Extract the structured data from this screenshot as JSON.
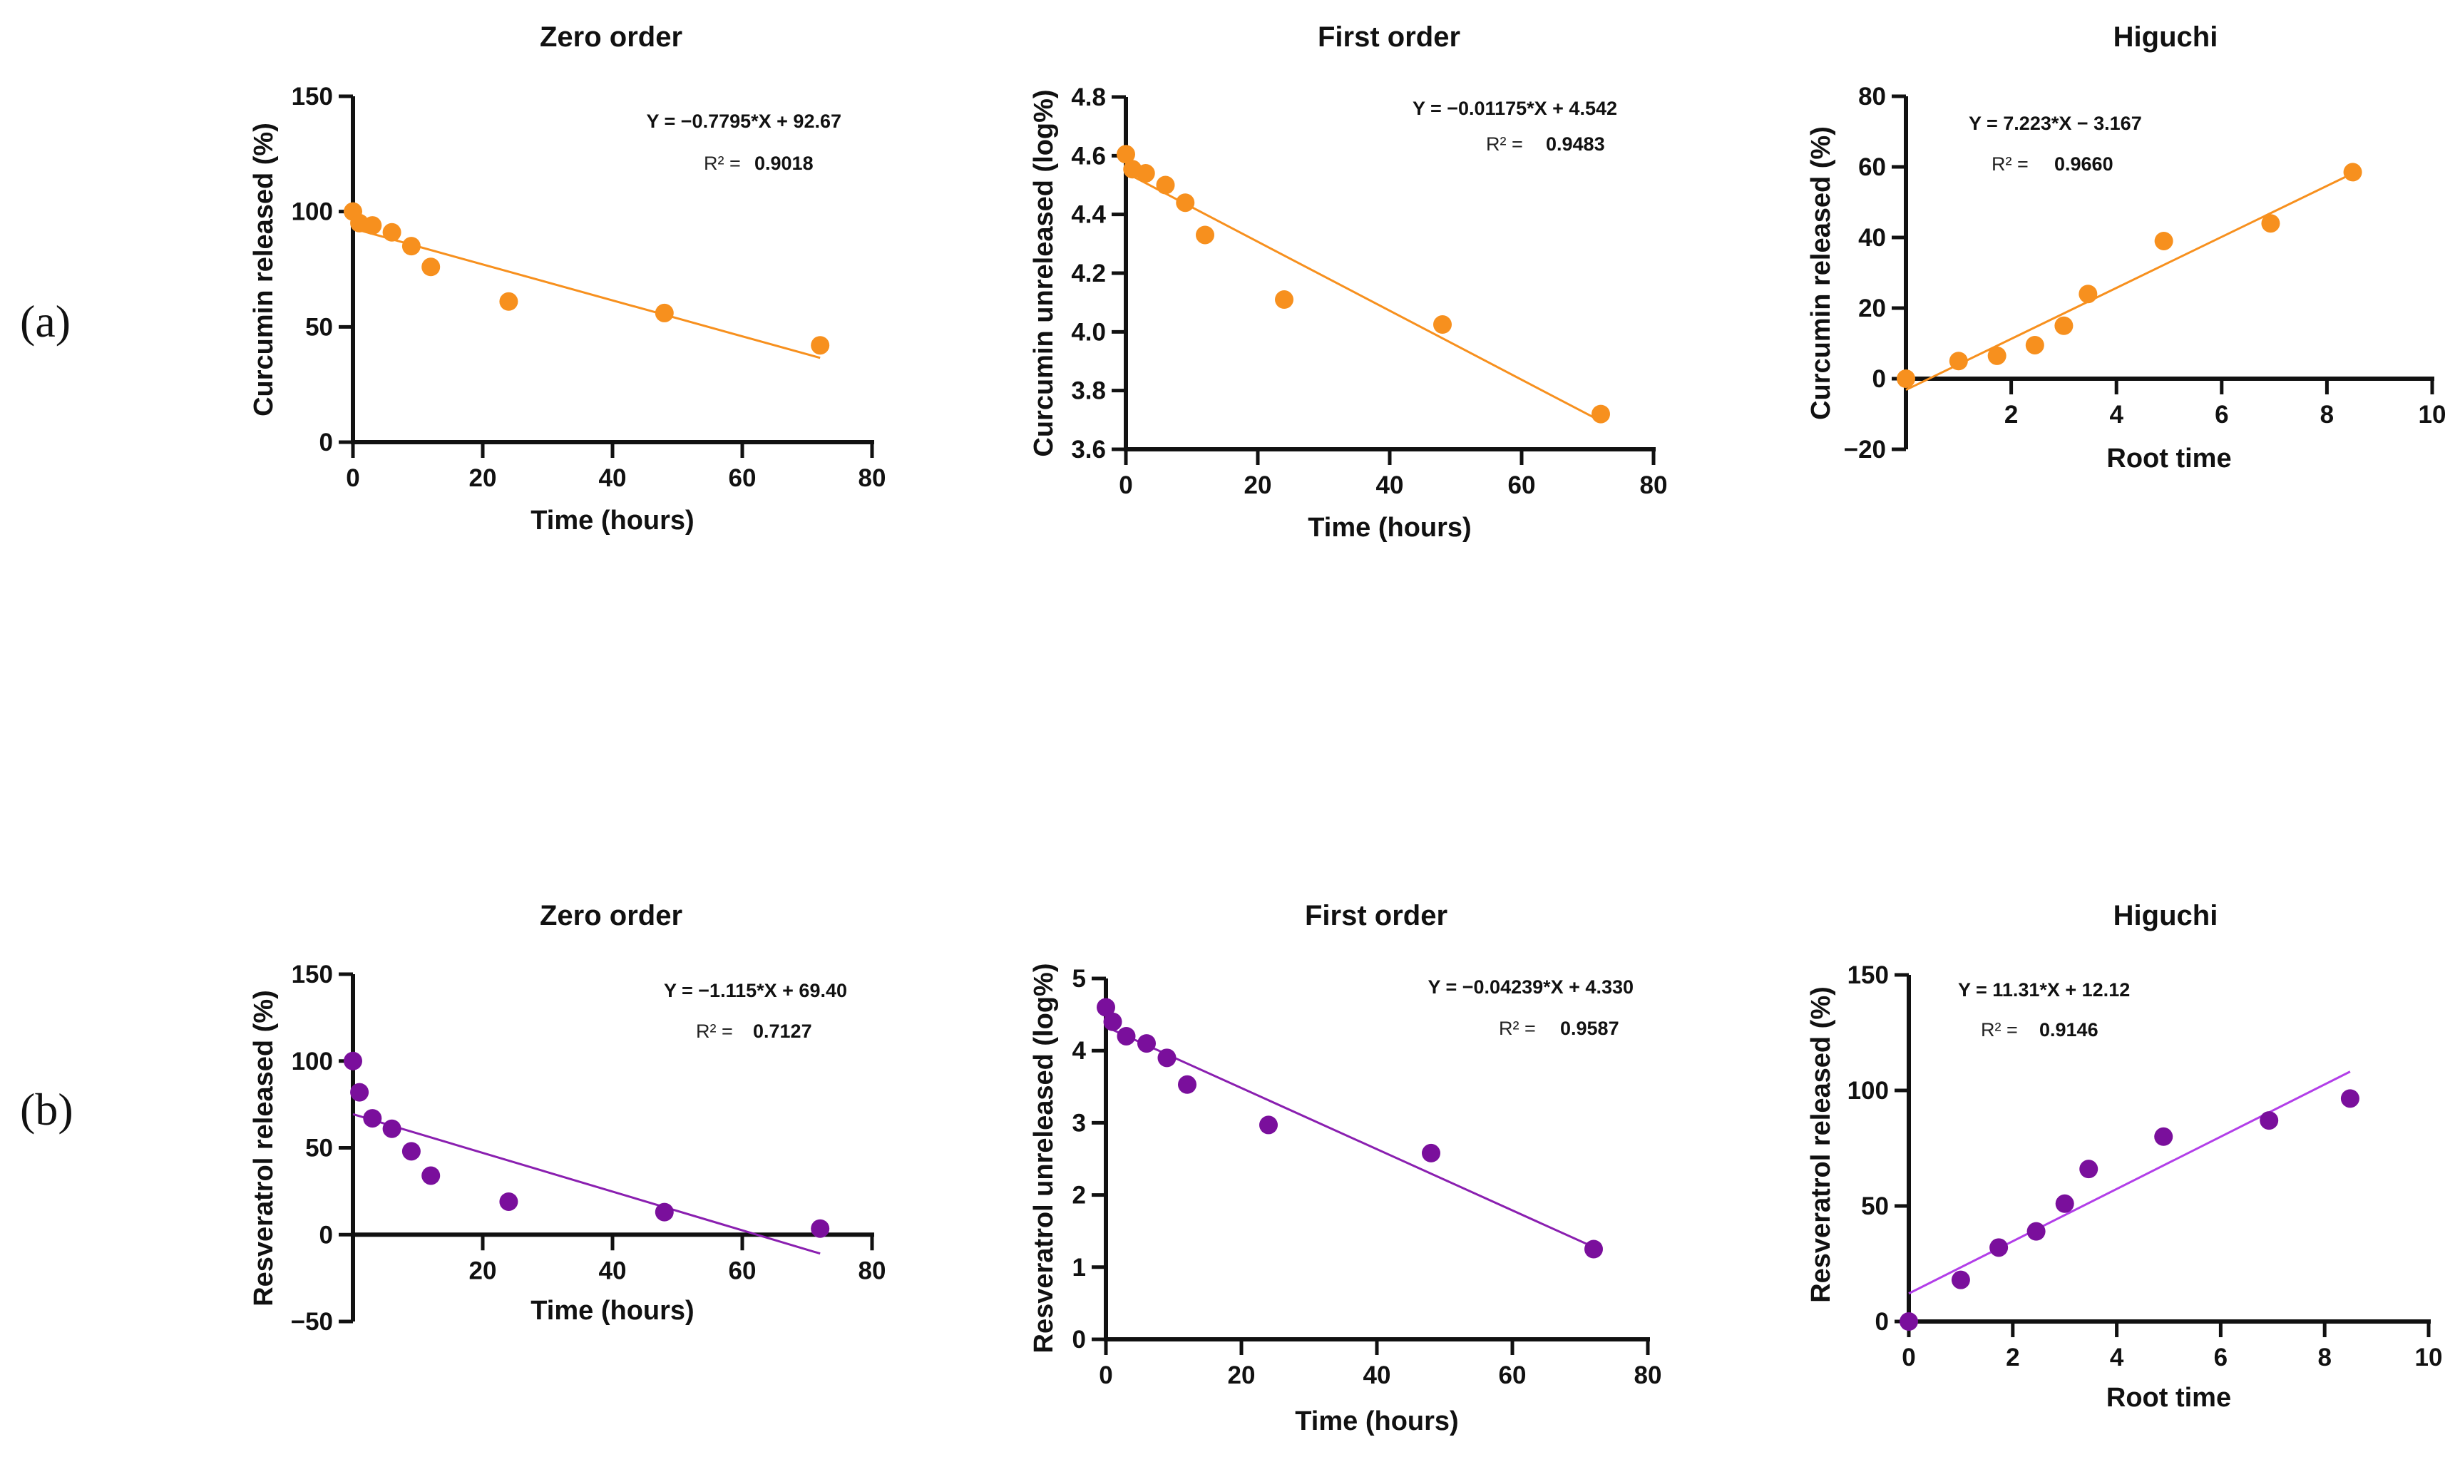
{
  "panel_labels": [
    "(a)",
    "(b)"
  ],
  "chart_data": [
    {
      "type": "scatter",
      "title": "Zero order",
      "xlabel": "Time (hours)",
      "ylabel": "Curcumin released (%)",
      "color": "#f7901e",
      "line_color": "#f7901e",
      "xlim": [
        0,
        80
      ],
      "ylim": [
        0,
        150
      ],
      "x_ticks": [
        {
          "v": 0,
          "label": "0"
        },
        {
          "v": 20,
          "label": "20"
        },
        {
          "v": 40,
          "label": "40"
        },
        {
          "v": 60,
          "label": "60"
        },
        {
          "v": 80,
          "label": "80"
        }
      ],
      "y_ticks": [
        {
          "v": 0,
          "label": "0"
        },
        {
          "v": 50,
          "label": "50"
        },
        {
          "v": 100,
          "label": "100"
        },
        {
          "v": 150,
          "label": "150"
        }
      ],
      "x": [
        0,
        1,
        3,
        6,
        9,
        12,
        24,
        48,
        72
      ],
      "y": [
        100,
        95,
        94,
        91,
        85,
        76,
        61,
        56,
        42
      ],
      "fit": {
        "slope": -0.7795,
        "intercept": 92.67,
        "equation": "Y = −0.7795*X + 92.67",
        "r2_label": "R² =",
        "r2": "0.9018"
      }
    },
    {
      "type": "scatter",
      "title": "First order",
      "xlabel": "Time (hours)",
      "ylabel": "Curcumin unreleased (log%)",
      "color": "#f7901e",
      "line_color": "#f7901e",
      "xlim": [
        0,
        80
      ],
      "ylim": [
        3.6,
        4.8
      ],
      "x_ticks": [
        {
          "v": 0,
          "label": "0"
        },
        {
          "v": 20,
          "label": "20"
        },
        {
          "v": 40,
          "label": "40"
        },
        {
          "v": 60,
          "label": "60"
        },
        {
          "v": 80,
          "label": "80"
        }
      ],
      "y_ticks": [
        {
          "v": 3.6,
          "label": "3.6"
        },
        {
          "v": 3.8,
          "label": "3.8"
        },
        {
          "v": 4.0,
          "label": "4.0"
        },
        {
          "v": 4.2,
          "label": "4.2"
        },
        {
          "v": 4.4,
          "label": "4.4"
        },
        {
          "v": 4.6,
          "label": "4.6"
        },
        {
          "v": 4.8,
          "label": "4.8"
        }
      ],
      "x": [
        0,
        1,
        3,
        6,
        9,
        12,
        24,
        48,
        72
      ],
      "y": [
        4.605,
        4.554,
        4.54,
        4.5,
        4.44,
        4.33,
        4.11,
        4.025,
        3.72
      ],
      "fit": {
        "slope": -0.01175,
        "intercept": 4.542,
        "equation": "Y = −0.01175*X + 4.542",
        "r2_label": "R² =",
        "r2": "0.9483"
      }
    },
    {
      "type": "scatter",
      "title": "Higuchi",
      "xlabel": "Root time",
      "ylabel": "Curcumin released (%)",
      "color": "#f7901e",
      "line_color": "#f7901e",
      "xlim": [
        0,
        10
      ],
      "ylim": [
        -20,
        80
      ],
      "x_ticks": [
        {
          "v": 2,
          "label": "2"
        },
        {
          "v": 4,
          "label": "4"
        },
        {
          "v": 6,
          "label": "6"
        },
        {
          "v": 8,
          "label": "8"
        },
        {
          "v": 10,
          "label": "10"
        }
      ],
      "y_ticks": [
        {
          "v": -20,
          "label": "−20"
        },
        {
          "v": 0,
          "label": "0"
        },
        {
          "v": 20,
          "label": "20"
        },
        {
          "v": 40,
          "label": "40"
        },
        {
          "v": 60,
          "label": "60"
        },
        {
          "v": 80,
          "label": "80"
        }
      ],
      "x": [
        0,
        1,
        1.73,
        2.45,
        3,
        3.46,
        4.9,
        6.93,
        8.49
      ],
      "y": [
        0,
        5,
        6.5,
        9.5,
        15,
        24,
        39,
        44,
        58.5
      ],
      "fit": {
        "slope": 7.223,
        "intercept": -3.167,
        "equation": "Y = 7.223*X − 3.167",
        "r2_label": "R² =",
        "r2": "0.9660"
      }
    },
    {
      "type": "scatter",
      "title": "Zero order",
      "xlabel": "Time (hours)",
      "ylabel": "Resveratrol released (%)",
      "color": "#7a0f9c",
      "line_color": "#8a1fb0",
      "xlim": [
        0,
        80
      ],
      "ylim": [
        -50,
        150
      ],
      "x_ticks": [
        {
          "v": 20,
          "label": "20"
        },
        {
          "v": 40,
          "label": "40"
        },
        {
          "v": 60,
          "label": "60"
        },
        {
          "v": 80,
          "label": "80"
        }
      ],
      "y_ticks": [
        {
          "v": -50,
          "label": "−50"
        },
        {
          "v": 0,
          "label": "0"
        },
        {
          "v": 50,
          "label": "50"
        },
        {
          "v": 100,
          "label": "100"
        },
        {
          "v": 150,
          "label": "150"
        }
      ],
      "x": [
        0,
        1,
        3,
        6,
        9,
        12,
        24,
        48,
        72
      ],
      "y": [
        100,
        82,
        67,
        61,
        48,
        34,
        19,
        13,
        3.5
      ],
      "fit": {
        "slope": -1.115,
        "intercept": 69.4,
        "equation": "Y = −1.115*X + 69.40",
        "r2_label": "R² =",
        "r2": "0.7127"
      }
    },
    {
      "type": "scatter",
      "title": "First order",
      "xlabel": "Time (hours)",
      "ylabel": "Resveratrol unreleased (log%)",
      "color": "#7a0f9c",
      "line_color": "#8a1fb0",
      "xlim": [
        0,
        80
      ],
      "ylim": [
        0,
        5
      ],
      "x_ticks": [
        {
          "v": 0,
          "label": "0"
        },
        {
          "v": 20,
          "label": "20"
        },
        {
          "v": 40,
          "label": "40"
        },
        {
          "v": 60,
          "label": "60"
        },
        {
          "v": 80,
          "label": "80"
        }
      ],
      "y_ticks": [
        {
          "v": 0,
          "label": "0"
        },
        {
          "v": 1,
          "label": "1"
        },
        {
          "v": 2,
          "label": "2"
        },
        {
          "v": 3,
          "label": "3"
        },
        {
          "v": 4,
          "label": "4"
        },
        {
          "v": 5,
          "label": "5"
        }
      ],
      "x": [
        0,
        1,
        3,
        6,
        9,
        12,
        24,
        48,
        72
      ],
      "y": [
        4.6,
        4.4,
        4.2,
        4.1,
        3.9,
        3.53,
        2.97,
        2.58,
        1.25
      ],
      "fit": {
        "slope": -0.04239,
        "intercept": 4.33,
        "equation": "Y = −0.04239*X + 4.330",
        "r2_label": "R² =",
        "r2": "0.9587"
      }
    },
    {
      "type": "scatter",
      "title": "Higuchi",
      "xlabel": "Root time",
      "ylabel": "Resveratrol released (%)",
      "color": "#7a0f9c",
      "line_color": "#b23ee8",
      "xlim": [
        0,
        10
      ],
      "ylim": [
        0,
        150
      ],
      "x_ticks": [
        {
          "v": 0,
          "label": "0"
        },
        {
          "v": 2,
          "label": "2"
        },
        {
          "v": 4,
          "label": "4"
        },
        {
          "v": 6,
          "label": "6"
        },
        {
          "v": 8,
          "label": "8"
        },
        {
          "v": 10,
          "label": "10"
        }
      ],
      "y_ticks": [
        {
          "v": 0,
          "label": "0"
        },
        {
          "v": 50,
          "label": "50"
        },
        {
          "v": 100,
          "label": "100"
        },
        {
          "v": 150,
          "label": "150"
        }
      ],
      "x": [
        0,
        1,
        1.73,
        2.45,
        3,
        3.46,
        4.9,
        6.93,
        8.49
      ],
      "y": [
        0,
        18,
        32,
        39,
        51,
        66,
        80,
        87,
        96.5
      ],
      "fit": {
        "slope": 11.31,
        "intercept": 12.12,
        "equation": "Y = 11.31*X + 12.12",
        "r2_label": "R² =",
        "r2": "0.9146"
      }
    }
  ]
}
